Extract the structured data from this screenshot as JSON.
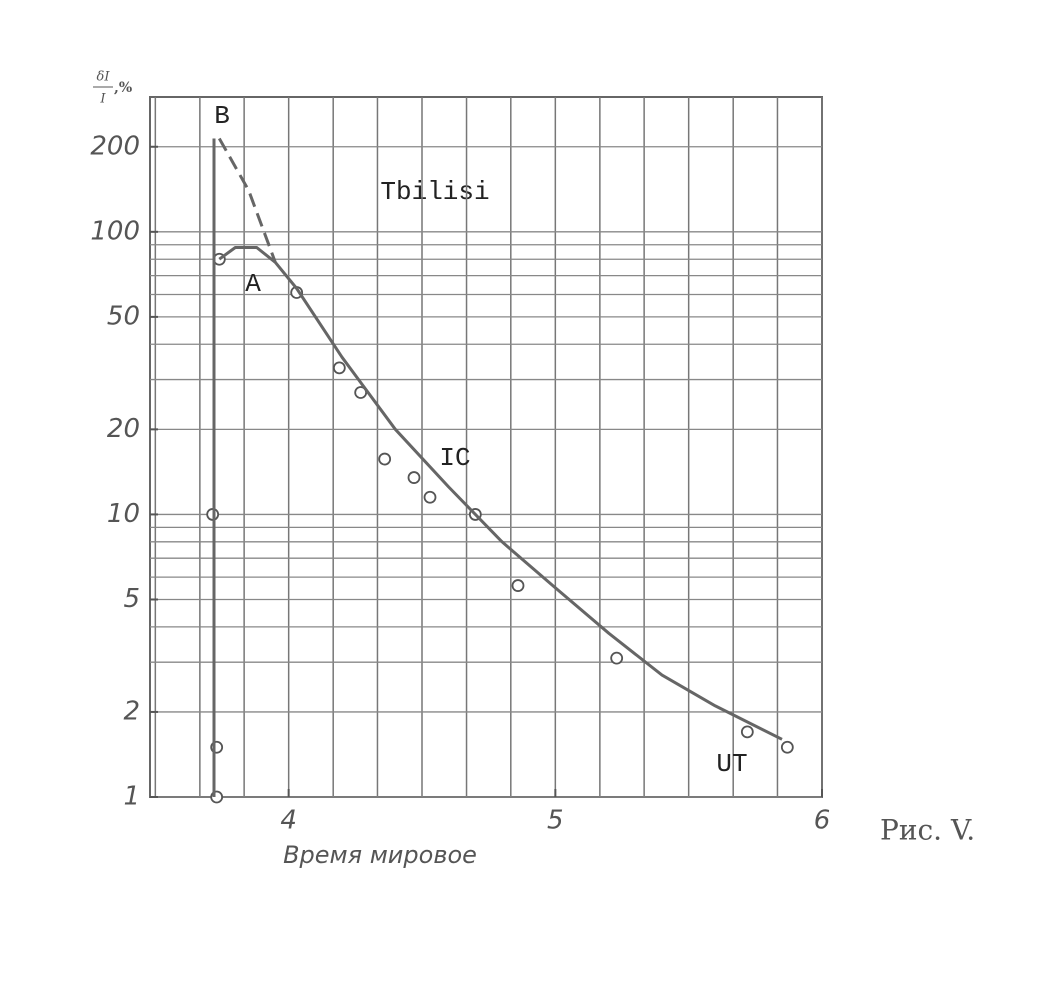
{
  "chart_data": {
    "type": "scatter",
    "title": "Tbilisi",
    "caption": "Рис. V.",
    "xlabel": "Время мировое",
    "ylabel": {
      "numerator": "δI",
      "denominator": "I",
      "unit": ",%"
    },
    "xlim": [
      3.48,
      6
    ],
    "ylim": [
      1,
      300
    ],
    "yscale": "log",
    "grid": true,
    "xticks": [
      4,
      5,
      6
    ],
    "yticks": [
      1,
      2,
      5,
      10,
      20,
      50,
      100,
      200
    ],
    "xgrid": [
      3.5,
      3.667,
      3.833,
      4,
      4.167,
      4.333,
      4.5,
      4.667,
      4.833,
      5,
      5.167,
      5.333,
      5.5,
      5.667,
      5.833,
      6
    ],
    "ygrid": [
      1,
      2,
      3,
      4,
      5,
      6,
      7,
      8,
      9,
      10,
      20,
      30,
      40,
      50,
      60,
      70,
      80,
      90,
      100,
      200
    ],
    "series": [
      {
        "style": "points",
        "color": "#555",
        "x": [
          3.715,
          3.73,
          3.73,
          3.74,
          4.03,
          4.19,
          4.27,
          4.36,
          4.47,
          4.53,
          4.7,
          4.86,
          5.23,
          5.72,
          5.87
        ],
        "values": [
          10,
          1.5,
          1,
          80,
          61,
          33,
          27,
          15.7,
          13.5,
          11.5,
          10,
          5.6,
          3.1,
          1.7,
          1.5
        ]
      },
      {
        "style": "solid",
        "color": "#666",
        "x": [
          3.74,
          3.8,
          3.88,
          3.95,
          4.03,
          4.2,
          4.4,
          4.6,
          4.8,
          5.0,
          5.2,
          5.4,
          5.6,
          5.85
        ],
        "values": [
          80,
          88,
          88,
          78,
          63,
          36,
          20,
          12.5,
          8,
          5.5,
          3.8,
          2.7,
          2.1,
          1.6
        ]
      },
      {
        "style": "dashed",
        "color": "#666",
        "x": [
          3.74,
          3.85,
          3.95
        ],
        "values": [
          214,
          140,
          78
        ]
      },
      {
        "style": "solid",
        "color": "#666",
        "x": [
          3.72,
          3.72
        ],
        "values": [
          1,
          214
        ]
      }
    ],
    "annotations": [
      "B",
      "A",
      "IC",
      "UT"
    ]
  }
}
